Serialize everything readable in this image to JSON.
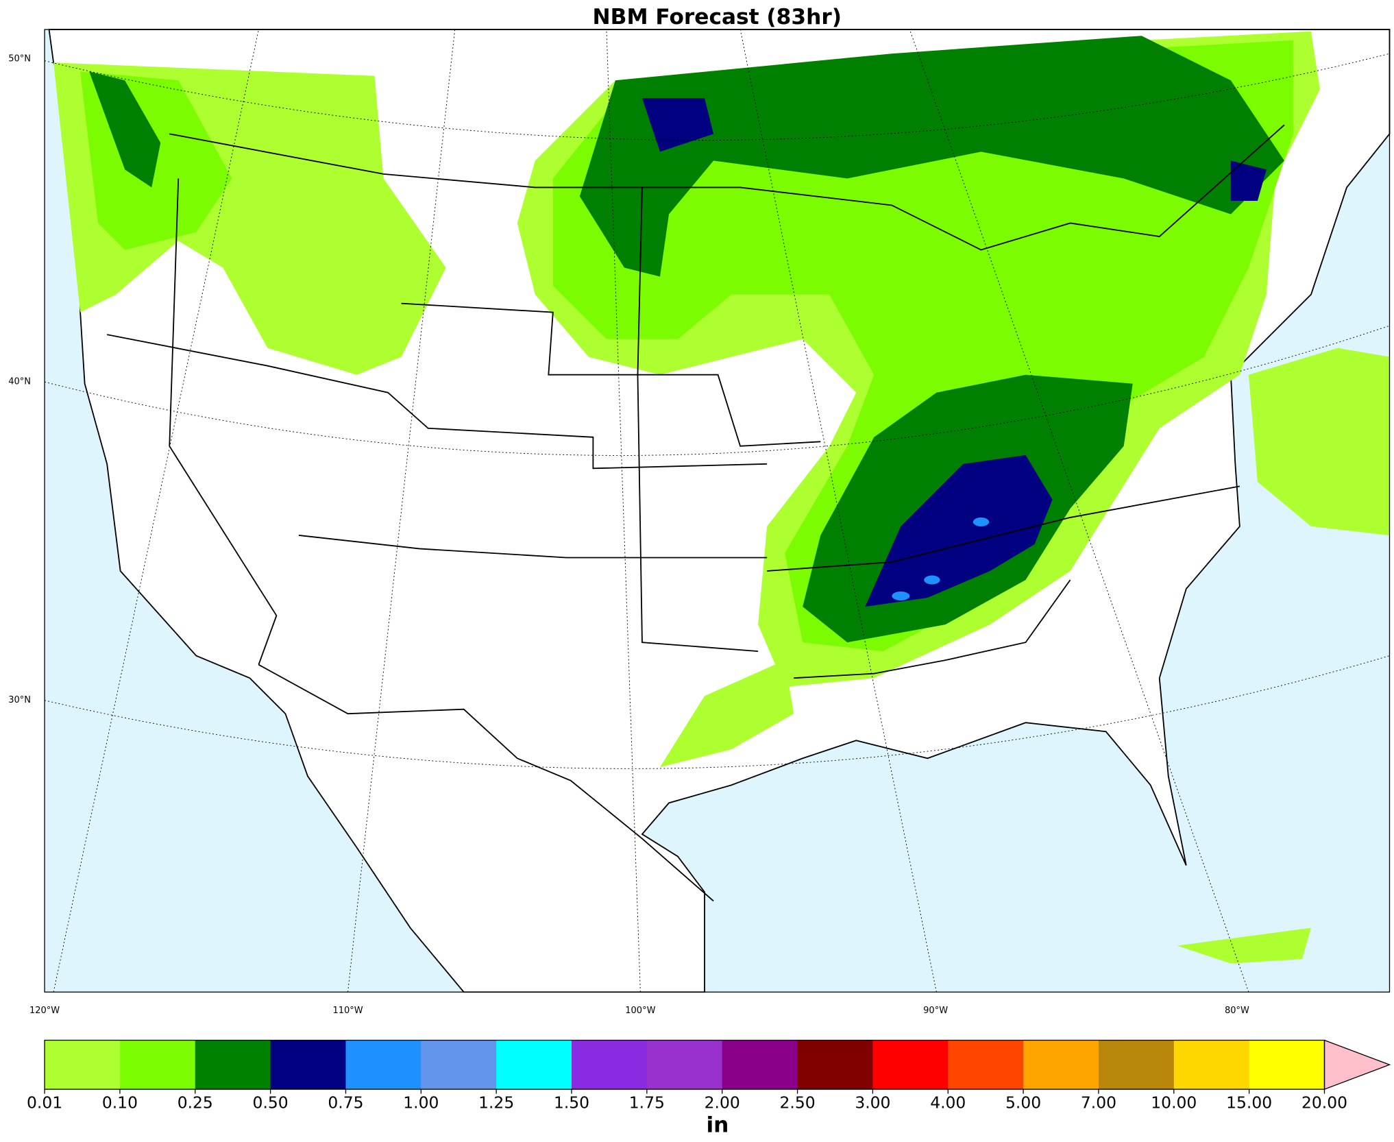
{
  "title": "NBM Forecast (83hr)",
  "map": {
    "lat_labels": [
      "50°N",
      "40°N",
      "30°N"
    ],
    "lon_labels": [
      "120°W",
      "110°W",
      "100°W",
      "90°W",
      "80°W"
    ]
  },
  "colorbar": {
    "unit": "in",
    "ticks": [
      0.01,
      {
        "value": 0.1,
        "label": "0.10"
      },
      0.25,
      {
        "value": 0.5,
        "label": "0.50"
      },
      0.75,
      {
        "value": 1,
        "label": "1.00"
      },
      1.25,
      {
        "value": 1.5,
        "label": "1.50"
      },
      1.75,
      {
        "value": 2,
        "label": "2.00"
      },
      {
        "value": 2.5,
        "label": "2.50"
      },
      {
        "value": 3,
        "label": "3.00"
      },
      {
        "value": 4,
        "label": "4.00"
      },
      {
        "value": 5,
        "label": "5.00"
      },
      {
        "value": 7,
        "label": "7.00"
      },
      {
        "value": 10,
        "label": "10.00"
      },
      {
        "value": 15,
        "label": "15.00"
      },
      {
        "value": 20,
        "label": "20.00"
      }
    ],
    "colors": [
      "#adff2f",
      "#7cfc00",
      "#008000",
      "#000080",
      "#1e90ff",
      "#6495ed",
      "#00ffff",
      "#8a2be2",
      "#9932cc",
      "#8b008b",
      "#800000",
      "#ff0000",
      "#ff4500",
      "#ffa500",
      "#b8860b",
      "#ffd700",
      "#ffff00"
    ],
    "extend_color": "#ffc0cb"
  }
}
